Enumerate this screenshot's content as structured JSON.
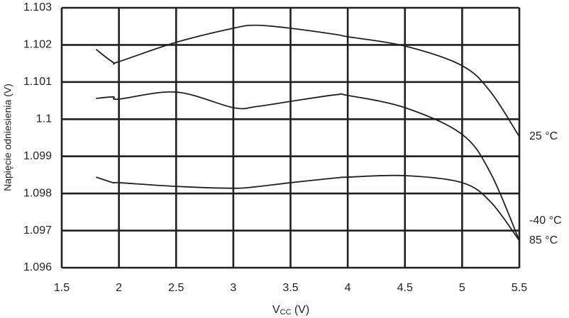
{
  "chart_data": {
    "type": "line",
    "y_label": "Napięcie odniesienia (V)",
    "x_label": [
      "V",
      "CC",
      " (V)"
    ],
    "xlim": [
      1.5,
      5.5
    ],
    "xticks": [
      1.5,
      2,
      2.5,
      3,
      3.5,
      4,
      4.5,
      5,
      5.5
    ],
    "ylim": [
      1.096,
      1.103
    ],
    "yticks": [
      1.096,
      1.097,
      1.098,
      1.099,
      1.1,
      1.101,
      1.102,
      1.103
    ],
    "grid": true,
    "x": [
      1.8,
      1.95,
      2.0,
      2.5,
      3.0,
      3.2,
      3.5,
      3.9,
      4.0,
      4.5,
      5.0,
      5.25,
      5.5
    ],
    "series": [
      {
        "name": "25 °C",
        "color": "#231f20",
        "values": [
          1.10188,
          1.10153,
          1.10155,
          1.10207,
          1.10245,
          1.10253,
          1.10245,
          1.10228,
          1.10222,
          1.10197,
          1.10144,
          1.10073,
          1.09953
        ]
      },
      {
        "name": "-40 °C",
        "color": "#231f20",
        "values": [
          1.10056,
          1.1006,
          1.10054,
          1.10073,
          1.10031,
          1.10034,
          1.10048,
          1.10066,
          1.10064,
          1.10031,
          1.09959,
          1.09854,
          1.09673
        ]
      },
      {
        "name": "85 °C",
        "color": "#231f20",
        "values": [
          1.09844,
          1.09829,
          1.09829,
          1.09819,
          1.09814,
          1.09818,
          1.09829,
          1.09842,
          1.09844,
          1.09848,
          1.09829,
          1.09777,
          1.09673
        ]
      }
    ]
  }
}
